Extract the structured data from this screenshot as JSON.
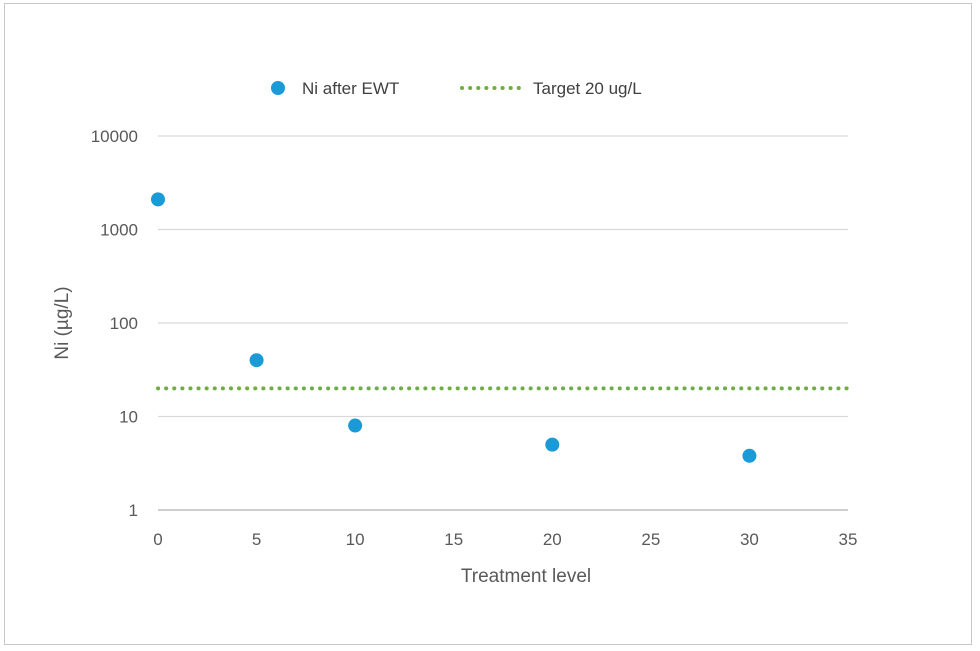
{
  "chart_data": {
    "type": "scatter",
    "xlabel": "Treatment level",
    "ylabel": "Ni (µg/L)",
    "xlim": [
      0,
      35
    ],
    "ylim": [
      1,
      10000
    ],
    "y_scale": "log",
    "x_ticks": [
      "0",
      "5",
      "10",
      "15",
      "20",
      "25",
      "30",
      "35"
    ],
    "y_ticks": [
      "1",
      "10",
      "100",
      "1000",
      "10000"
    ],
    "grid": true,
    "legend_position": "top",
    "series": [
      {
        "name": "Ni after EWT",
        "kind": "scatter",
        "color": "#1a9ad6",
        "x": [
          0,
          5,
          10,
          20,
          30
        ],
        "y": [
          2100,
          40,
          8,
          5,
          3.8
        ]
      },
      {
        "name": "Target 20 ug/L",
        "kind": "line",
        "style": "dotted",
        "color": "#70ad47",
        "x": [
          0,
          35
        ],
        "y": [
          20,
          20
        ]
      }
    ]
  }
}
